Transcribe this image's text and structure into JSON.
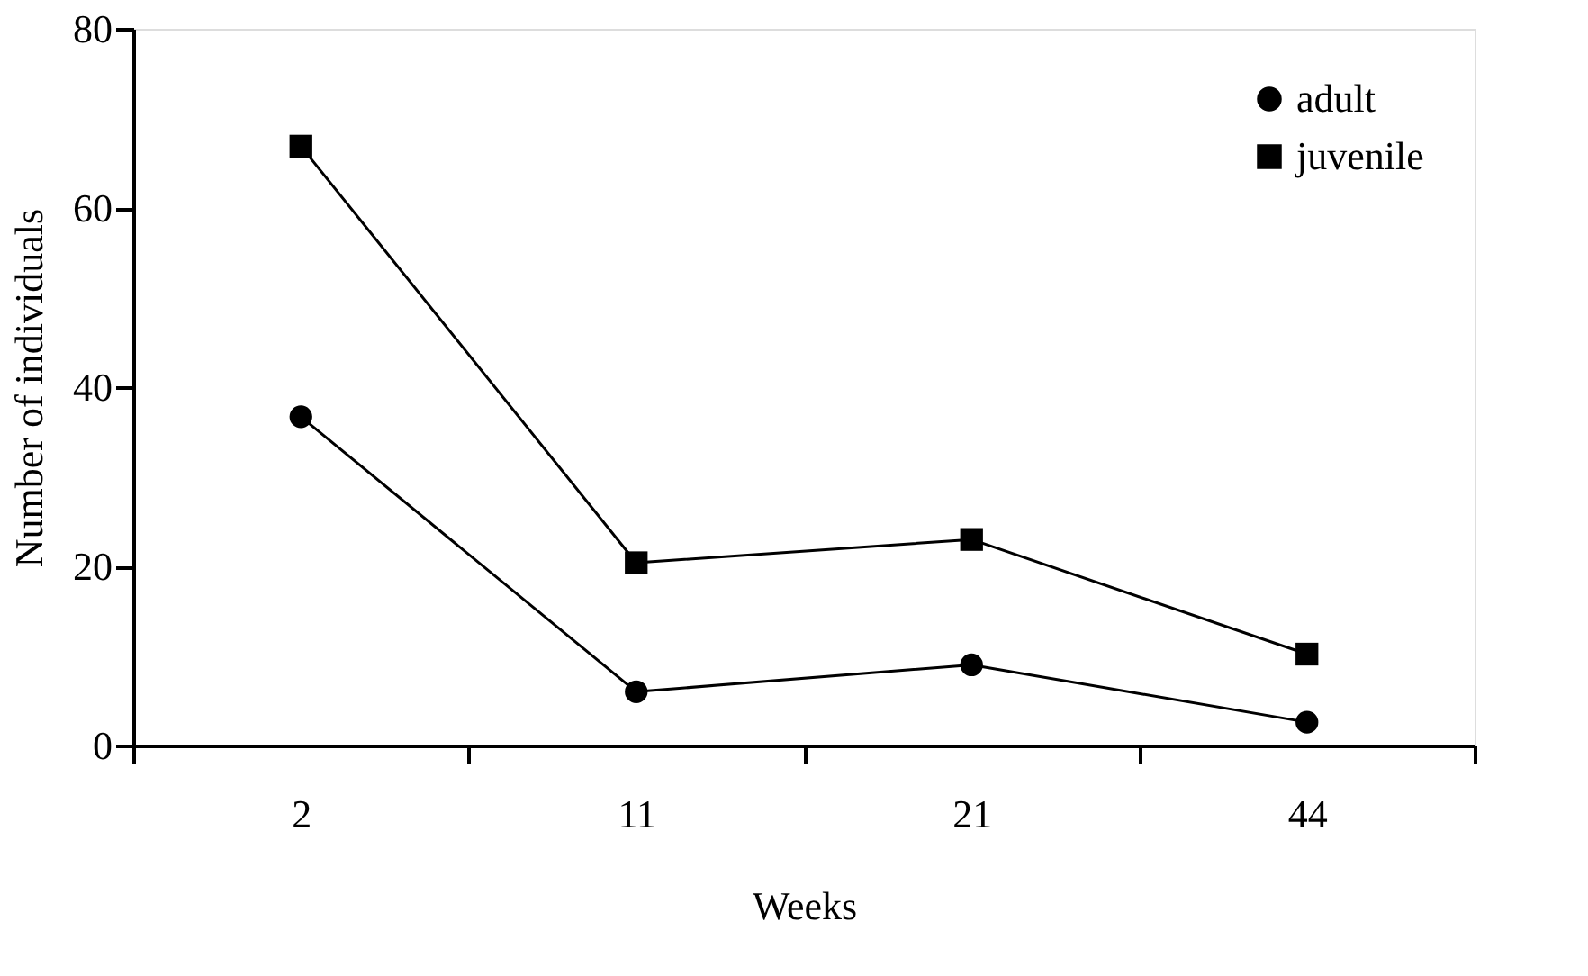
{
  "chart_data": {
    "type": "line",
    "xlabel": "Weeks",
    "ylabel": "Number of individuals",
    "categories": [
      "2",
      "11",
      "21",
      "44"
    ],
    "ylim": [
      0,
      80
    ],
    "yticks": [
      0,
      20,
      40,
      60,
      80
    ],
    "legend": "top right",
    "line_style": "solid",
    "series": [
      {
        "name": "adult",
        "color": "#000000",
        "marker": "circle",
        "values": [
          36.7,
          6.0,
          9.0,
          2.6
        ]
      },
      {
        "name": "juvenile",
        "color": "#000000",
        "marker": "square",
        "values": [
          66.9,
          20.4,
          23.0,
          10.2
        ]
      }
    ]
  }
}
